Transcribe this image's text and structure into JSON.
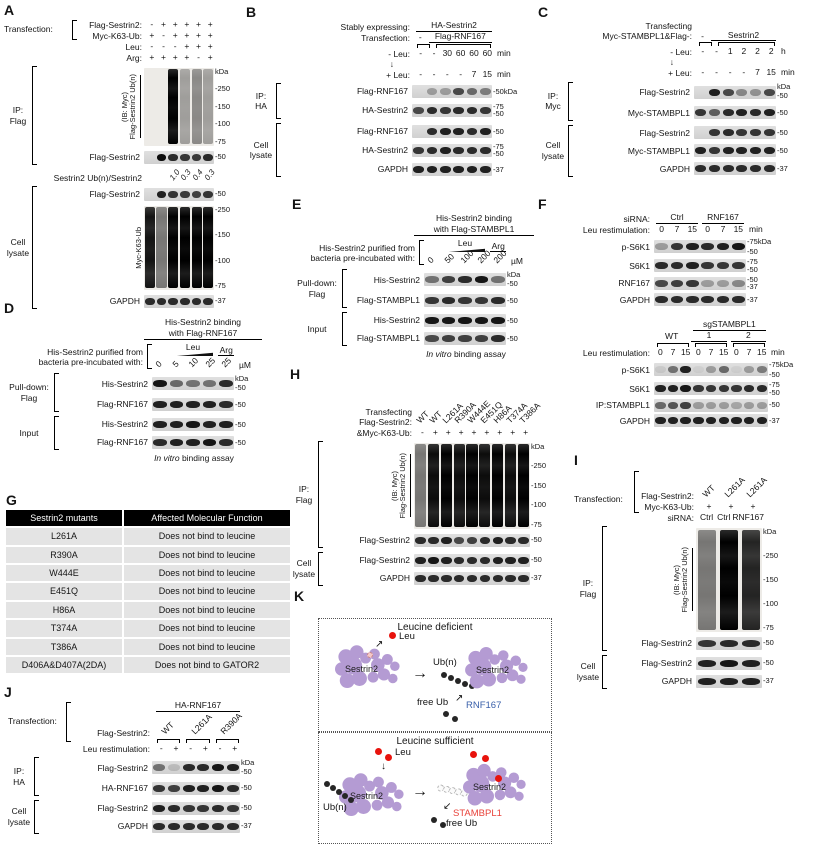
{
  "colors": {
    "sestrin2_purple": "#b49bd3",
    "leucine_red": "#e8130d",
    "rnf167_blue": "#3a60aa",
    "stambpl1_red": "#e8423a"
  },
  "glyphs": {
    "down_arrow": "↓",
    "right_arrow": "→",
    "ne_arrow": "↗",
    "sw_arrow": "↙"
  },
  "panel_a": {
    "label": "A",
    "kda": "kDa",
    "transfection_label": "Transfection:",
    "rows": [
      {
        "name": "Flag-Sestrin2:",
        "values": [
          "-",
          "+",
          "+",
          "+",
          "+",
          "+"
        ]
      },
      {
        "name": "Myc-K63-Ub:",
        "values": [
          "+",
          "-",
          "+",
          "+",
          "+",
          "+"
        ]
      },
      {
        "name": "Leu:",
        "values": [
          "-",
          "-",
          "-",
          "+",
          "+",
          "+"
        ]
      },
      {
        "name": "Arg:",
        "values": [
          "+",
          "+",
          "+",
          "+",
          "-",
          "+"
        ]
      }
    ],
    "ip_group_label": "IP:\nFlag",
    "smear": {
      "rot_label_1": "(IB: Myc)",
      "rot_label_2": "Flag-Sestrin2 Ub(n)",
      "markers": [
        "250",
        "150",
        "100",
        "75"
      ],
      "lanes": [
        0,
        0,
        1,
        0.33,
        0.42,
        0.33
      ]
    },
    "ip_band": {
      "label": "Flag-Sestrin2",
      "markers": [
        "50"
      ],
      "bands": [
        0,
        1,
        0.85,
        0.8,
        0.78,
        0.85
      ]
    },
    "ratio": {
      "label": "Sestrin2 Ub(n)/Sestrin2",
      "values": [
        "",
        "",
        "1.0",
        "0.3",
        "0.4",
        "0.3"
      ]
    },
    "cell_lysate_label": "Cell\nlysate",
    "cl_band": {
      "label": "Flag-Sestrin2",
      "markers": [
        "50"
      ],
      "bands": [
        0,
        0.9,
        0.8,
        0.78,
        0.75,
        0.8
      ]
    },
    "cl_smear": {
      "rot_label": "Myc-K63-Ub",
      "markers": [
        "250",
        "150",
        "100",
        "75"
      ],
      "lanes": [
        0.92,
        0.5,
        1,
        1,
        1,
        1
      ]
    },
    "gapdh": {
      "label": "GAPDH",
      "markers": [
        "37"
      ],
      "bands": [
        0.85,
        0.85,
        0.85,
        0.85,
        0.85,
        0.85
      ]
    }
  },
  "panel_b": {
    "label": "B",
    "stably_label": "Stably expressing:",
    "stably_group": "HA-Sestrin2",
    "transfection_label": "Transfection:",
    "transfection_minus": "-",
    "transfection_group": "Flag-RNF167",
    "leu_minus": {
      "name": "- Leu:",
      "values": [
        "-",
        "-",
        "30",
        "60",
        "60",
        "60"
      ],
      "unit": "min"
    },
    "leu_plus": {
      "name": "+ Leu:",
      "values": [
        "-",
        "-",
        "-",
        "-",
        "7",
        "15"
      ],
      "unit": "min"
    },
    "ip_label": "IP:\nHA",
    "ip_rows": [
      {
        "label": "Flag-RNF167",
        "markers": [
          "50kDa"
        ],
        "bands": [
          0,
          0.3,
          0.3,
          0.7,
          0.55,
          0.45
        ]
      },
      {
        "label": "HA-Sestrin2",
        "markers": [
          "75",
          "50"
        ],
        "bands": [
          0.7,
          0.85,
          0.8,
          0.85,
          0.85,
          0.8
        ]
      }
    ],
    "cell_l_label": "Cell\nlysate",
    "cl_rows": [
      {
        "label": "Flag-RNF167",
        "markers": [
          "50"
        ],
        "bands": [
          0,
          0.85,
          0.9,
          0.9,
          0.85,
          0.9
        ]
      },
      {
        "label": "HA-Sestrin2",
        "markers": [
          "75",
          "50"
        ],
        "bands": [
          0.8,
          0.85,
          0.9,
          0.85,
          0.85,
          0.85
        ]
      },
      {
        "label": "GAPDH",
        "markers": [
          "37"
        ],
        "bands": [
          0.9,
          0.9,
          0.9,
          0.9,
          0.9,
          0.9
        ]
      }
    ]
  },
  "panel_c": {
    "label": "C",
    "title": "Transfecting\nMyc-STAMBPL1&Flag-:",
    "minus": "-",
    "group": "Sestrin2",
    "kda": "kDa",
    "leu_minus": {
      "name": "- Leu:",
      "values": [
        "-",
        "-",
        "1",
        "2",
        "2",
        "2"
      ],
      "unit": "h"
    },
    "leu_plus": {
      "name": "+ Leu:",
      "values": [
        "-",
        "-",
        "-",
        "-",
        "7",
        "15"
      ],
      "unit": "min"
    },
    "ip_label": "IP:\nMyc",
    "ip_rows": [
      {
        "label": "Flag-Sestrin2",
        "markers": [
          "50"
        ],
        "bands": [
          0,
          0.9,
          0.7,
          0.4,
          0.35,
          0.7
        ]
      },
      {
        "label": "Myc-STAMBPL1",
        "markers": [
          "50"
        ],
        "bands": [
          0.8,
          0.6,
          0.85,
          0.9,
          0.85,
          0.9
        ]
      }
    ],
    "cell_l_label": "Cell\nlysate",
    "cl_rows": [
      {
        "label": "Flag-Sestrin2",
        "markers": [
          "50"
        ],
        "bands": [
          0,
          0.8,
          0.85,
          0.8,
          0.8,
          0.8
        ]
      },
      {
        "label": "Myc-STAMBPL1",
        "markers": [
          "50"
        ],
        "bands": [
          0.9,
          0.8,
          0.9,
          0.9,
          0.9,
          0.9
        ]
      },
      {
        "label": "GAPDH",
        "markers": [
          "37"
        ],
        "bands": [
          0.85,
          0.85,
          0.85,
          0.85,
          0.85,
          0.85
        ]
      }
    ]
  },
  "panel_d": {
    "label": "D",
    "title": "His-Sestrin2 binding\nwith Flag-RNF167",
    "incubation_label": "His-Sestrin2 purified from\nbacteria pre-incubated with:",
    "leu_label": "Leu",
    "arg_label": "Arg",
    "doses": [
      "0",
      "5",
      "10",
      "25",
      "25"
    ],
    "dose_unit": "µM",
    "kda": "kDa",
    "pd_label": "Pull-down:\nFlag",
    "pd_rows": [
      {
        "label": "His-Sestrin2",
        "markers": [
          "50"
        ],
        "bands": [
          0.95,
          0.55,
          0.5,
          0.5,
          0.85
        ]
      },
      {
        "label": "Flag-RNF167",
        "markers": [
          "50"
        ],
        "bands": [
          0.9,
          0.9,
          0.9,
          0.9,
          0.85
        ]
      }
    ],
    "input_label": "Input",
    "input_rows": [
      {
        "label": "His-Sestrin2",
        "markers": [
          "50"
        ],
        "bands": [
          0.9,
          0.9,
          0.95,
          0.9,
          0.9
        ]
      },
      {
        "label": "Flag-RNF167",
        "markers": [
          "50"
        ],
        "bands": [
          0.85,
          0.9,
          0.9,
          0.95,
          0.85
        ]
      }
    ],
    "footer_italic": "In vitro",
    "footer_rest": " binding assay"
  },
  "panel_e": {
    "label": "E",
    "title": "His-Sestrin2 binding\nwith Flag-STAMBPL1",
    "incubation_label": "His-Sestrin2 purified from\nbacteria pre-incubated with:",
    "leu_label": "Leu",
    "arg_label": "Arg",
    "doses": [
      "0",
      "50",
      "100",
      "200",
      "200"
    ],
    "dose_unit": "µM",
    "kda": "kDa",
    "pd_label": "Pull-down:\nFlag",
    "pd_rows": [
      {
        "label": "His-Sestrin2",
        "markers": [
          "50"
        ],
        "bands": [
          0.5,
          0.75,
          0.85,
          0.95,
          0.5
        ]
      },
      {
        "label": "Flag-STAMBPL1",
        "markers": [
          "50"
        ],
        "bands": [
          0.8,
          0.85,
          0.8,
          0.8,
          0.85
        ]
      }
    ],
    "input_label": "Input",
    "input_rows": [
      {
        "label": "His-Sestrin2",
        "markers": [
          "50"
        ],
        "bands": [
          0.95,
          0.95,
          0.95,
          0.95,
          0.95
        ]
      },
      {
        "label": "Flag-STAMBPL1",
        "markers": [
          "50"
        ],
        "bands": [
          0.7,
          0.75,
          0.75,
          0.75,
          0.85
        ]
      }
    ],
    "footer_italic": "In vitro",
    "footer_rest": " binding assay"
  },
  "panel_f": {
    "label": "F",
    "top": {
      "sirna_label": "siRNA:",
      "groups": [
        "Ctrl",
        "RNF167"
      ],
      "stim_label": "Leu restimulation:",
      "times": [
        "0",
        "7",
        "15",
        "0",
        "7",
        "15"
      ],
      "unit": "min",
      "rows": [
        {
          "label": "p-S6K1",
          "markers": [
            "75kDa",
            "50"
          ],
          "bands": [
            0.3,
            0.8,
            0.9,
            0.85,
            0.9,
            0.95
          ]
        },
        {
          "label": "S6K1",
          "markers": [
            "75",
            "50"
          ],
          "bands": [
            0.85,
            0.85,
            0.9,
            0.8,
            0.8,
            0.8
          ]
        },
        {
          "label": "RNF167",
          "markers": [
            "50",
            "37"
          ],
          "bands": [
            0.7,
            0.75,
            0.8,
            0.3,
            0.3,
            0.4
          ]
        },
        {
          "label": "GAPDH",
          "markers": [
            "37"
          ],
          "bands": [
            0.85,
            0.85,
            0.85,
            0.85,
            0.85,
            0.85
          ]
        }
      ]
    },
    "bottom": {
      "sg_label": "sgSTAMBPL1",
      "wt": "WT",
      "g1": "1",
      "g2": "2",
      "stim_label": "Leu restimulation:",
      "times": [
        "0",
        "7",
        "15",
        "0",
        "7",
        "15",
        "0",
        "7",
        "15"
      ],
      "unit": "min",
      "rows": [
        {
          "label": "p-S6K1",
          "markers": [
            "75kDa",
            "50"
          ],
          "bands": [
            0.08,
            0.5,
            0.9,
            0.05,
            0.3,
            0.55,
            0.05,
            0.3,
            0.45
          ]
        },
        {
          "label": "S6K1",
          "markers": [
            "75",
            "50"
          ],
          "bands": [
            0.9,
            0.9,
            0.95,
            0.8,
            0.8,
            0.8,
            0.8,
            0.85,
            0.85
          ]
        },
        {
          "label": "IP:STAMBPL1",
          "markers": [
            "50"
          ],
          "bands": [
            0.55,
            0.65,
            0.75,
            0.3,
            0.3,
            0.3,
            0.25,
            0.3,
            0.3
          ]
        },
        {
          "label": "GAPDH",
          "markers": [
            "37"
          ],
          "bands": [
            0.9,
            0.9,
            0.9,
            0.9,
            0.9,
            0.9,
            0.9,
            0.9,
            0.9
          ]
        }
      ]
    }
  },
  "panel_g": {
    "label": "G",
    "headers": [
      "Sestrin2 mutants",
      "Affected Molecular Function"
    ],
    "rows": [
      {
        "m": "L261A",
        "f": "Does not bind to leucine"
      },
      {
        "m": "R390A",
        "f": "Does not bind to leucine"
      },
      {
        "m": "W444E",
        "f": "Does not bind to leucine"
      },
      {
        "m": "E451Q",
        "f": "Does not bind to leucine"
      },
      {
        "m": "H86A",
        "f": "Does not bind to leucine"
      },
      {
        "m": "T374A",
        "f": "Does not bind to leucine"
      },
      {
        "m": "T386A",
        "f": "Does not bind to leucine"
      },
      {
        "m": "D406A&D407A(2DA)",
        "f": "Does not bind to GATOR2"
      }
    ]
  },
  "panel_h": {
    "label": "H",
    "title": "Transfecting\nFlag-Sestrin2:",
    "ub_name": "&Myc-K63-Ub:",
    "mutants": [
      "WT",
      "WT",
      "L261A",
      "R390A",
      "W444E",
      "E451Q",
      "H86A",
      "T374A",
      "T386A"
    ],
    "ub_values": [
      "-",
      "+",
      "+",
      "+",
      "+",
      "+",
      "+",
      "+",
      "+"
    ],
    "kda": "kDa",
    "ip_group_label": "IP:\nFlag",
    "smear": {
      "rot_label_1": "(IB: Myc)",
      "rot_label_2": "Flag-Sestrin2 Ub(n)",
      "markers": [
        "250",
        "150",
        "100",
        "75"
      ],
      "lanes": [
        0.5,
        0.95,
        1,
        0.95,
        1,
        0.95,
        1,
        0.95,
        1
      ]
    },
    "ip_band": {
      "label": "Flag-Sestrin2",
      "markers": [
        "50"
      ],
      "bands": [
        0.85,
        0.85,
        0.9,
        0.7,
        0.75,
        0.85,
        0.9,
        0.85,
        0.85
      ]
    },
    "cell_l_label": "Cell\nlysate",
    "cl_rows": [
      {
        "label": "Flag-Sestrin2",
        "markers": [
          "50"
        ],
        "bands": [
          0.9,
          0.95,
          0.9,
          0.85,
          0.85,
          0.85,
          0.9,
          0.9,
          0.9
        ]
      },
      {
        "label": "GAPDH",
        "markers": [
          "37"
        ],
        "bands": [
          0.85,
          0.85,
          0.85,
          0.85,
          0.85,
          0.85,
          0.85,
          0.85,
          0.85
        ]
      }
    ]
  },
  "panel_i": {
    "label": "I",
    "transfection_label": "Transfection:",
    "row1_name": "Flag-Sestrin2:",
    "mutants": [
      "WT",
      "L261A",
      "L261A"
    ],
    "row2_name": "Myc-K63-Ub:",
    "ub_values": [
      "+",
      "+",
      "+"
    ],
    "sirna_label": "siRNA:",
    "sirna_values": [
      "Ctrl",
      "Ctrl",
      "RNF167"
    ],
    "kda": "kDa",
    "ip_group_label": "IP:\nFlag",
    "smear": {
      "rot_label_1": "(IB: Myc)",
      "rot_label_2": "Flag-Sestrin2 Ub(n)",
      "markers": [
        "250",
        "150",
        "100",
        "75"
      ],
      "lanes": [
        0.5,
        1,
        0.85
      ]
    },
    "ip_band": {
      "label": "Flag-Sestrin2",
      "markers": [
        "50"
      ],
      "bands": [
        0.8,
        0.85,
        0.85
      ]
    },
    "cell_l_label": "Cell\nlysate",
    "cl_rows": [
      {
        "label": "Flag-Sestrin2",
        "markers": [
          "50"
        ],
        "bands": [
          0.9,
          0.95,
          0.9
        ]
      },
      {
        "label": "GAPDH",
        "markers": [
          "37"
        ],
        "bands": [
          0.9,
          0.9,
          0.9
        ]
      }
    ]
  },
  "panel_j": {
    "label": "J",
    "transfection_label": "Transfection:",
    "top_group": "HA-RNF167",
    "row_name": "Flag-Sestrin2:",
    "mutants": [
      "WT",
      "L261A",
      "R390A"
    ],
    "stim_label": "Leu restimulation:",
    "stim_values": [
      "-",
      "+",
      "-",
      "+",
      "-",
      "+"
    ],
    "kda": "kDa",
    "ip_label": "IP:\nHA",
    "ip_rows": [
      {
        "label": "Flag-Sestrin2",
        "markers": [
          "50"
        ],
        "bands": [
          0.5,
          0.15,
          0.85,
          0.85,
          0.95,
          0.9
        ]
      },
      {
        "label": "HA-RNF167",
        "markers": [
          "50"
        ],
        "bands": [
          0.8,
          0.75,
          0.9,
          0.9,
          0.95,
          0.85
        ]
      }
    ],
    "cell_l_label": "Cell\nlysate",
    "cl_rows": [
      {
        "label": "Flag-Sestrin2",
        "markers": [
          "50"
        ],
        "bands": [
          0.9,
          0.85,
          0.8,
          0.8,
          0.85,
          0.8
        ]
      },
      {
        "label": "GAPDH",
        "markers": [
          "37"
        ],
        "bands": [
          0.85,
          0.85,
          0.85,
          0.85,
          0.85,
          0.85
        ]
      }
    ]
  },
  "panel_k": {
    "label": "K",
    "box1": {
      "title": "Leucine deficient",
      "sestrin_left": "Sestrin2",
      "sestrin_right": "Sestrin2",
      "leu": "Leu",
      "ubn": "Ub(n)",
      "free_ub": "free Ub",
      "enzyme": "RNF167"
    },
    "box2": {
      "title": "Leucine sufficient",
      "sestrin_left": "Sestrin2",
      "sestrin_right": "Sestrin2",
      "leu": "Leu",
      "ubn": "Ub(n)",
      "free_ub": "free Ub",
      "enzyme": "STAMBPL1"
    }
  }
}
